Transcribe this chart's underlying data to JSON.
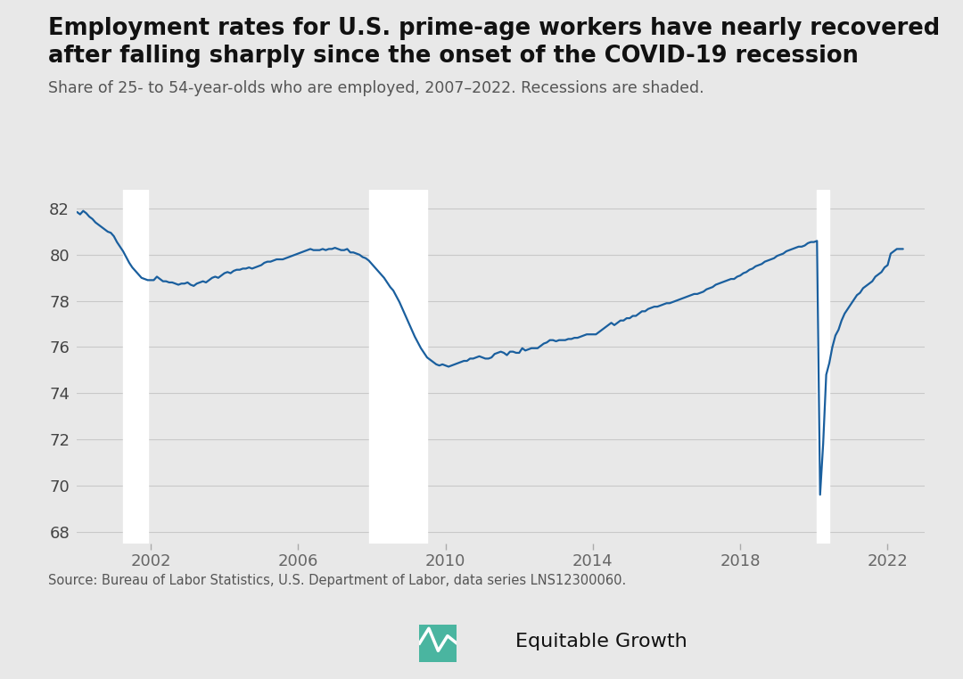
{
  "title_line1": "Employment rates for U.S. prime-age workers have nearly recovered",
  "title_line2": "after falling sharply since the onset of the COVID-19 recession",
  "subtitle": "Share of 25- to 54-year-olds who are employed, 2007–2022. Recessions are shaded.",
  "source": "Source: Bureau of Labor Statistics, U.S. Department of Labor, data series LNS12300060.",
  "line_color": "#1a5f9e",
  "line_width": 1.6,
  "background_color": "#e8e8e8",
  "plot_background": "#e8e8e8",
  "recession_color": "#ffffff",
  "recession_alpha": 1.0,
  "ylim": [
    67.5,
    82.8
  ],
  "yticks": [
    68,
    70,
    72,
    74,
    76,
    78,
    80,
    82
  ],
  "xlim": [
    2000.0,
    2023.0
  ],
  "xtick_positions": [
    2002,
    2006,
    2010,
    2014,
    2018,
    2022
  ],
  "xtick_labels": [
    "2002",
    "2006",
    "2010",
    "2014",
    "2018",
    "2022"
  ],
  "recession1_start": 2001.25,
  "recession1_end": 2001.92,
  "recession2_start": 2007.917,
  "recession2_end": 2009.5,
  "recession3_start": 2020.083,
  "recession3_end": 2020.416,
  "data": [
    [
      2000.0,
      81.85
    ],
    [
      2000.083,
      81.75
    ],
    [
      2000.167,
      81.9
    ],
    [
      2000.25,
      81.8
    ],
    [
      2000.333,
      81.65
    ],
    [
      2000.417,
      81.55
    ],
    [
      2000.5,
      81.4
    ],
    [
      2000.583,
      81.3
    ],
    [
      2000.667,
      81.2
    ],
    [
      2000.75,
      81.1
    ],
    [
      2000.833,
      81.0
    ],
    [
      2000.917,
      80.95
    ],
    [
      2001.0,
      80.8
    ],
    [
      2001.083,
      80.55
    ],
    [
      2001.167,
      80.35
    ],
    [
      2001.25,
      80.15
    ],
    [
      2001.333,
      79.9
    ],
    [
      2001.417,
      79.65
    ],
    [
      2001.5,
      79.45
    ],
    [
      2001.583,
      79.3
    ],
    [
      2001.667,
      79.15
    ],
    [
      2001.75,
      79.0
    ],
    [
      2001.833,
      78.95
    ],
    [
      2001.917,
      78.9
    ],
    [
      2002.0,
      78.9
    ],
    [
      2002.083,
      78.9
    ],
    [
      2002.167,
      79.05
    ],
    [
      2002.25,
      78.95
    ],
    [
      2002.333,
      78.85
    ],
    [
      2002.417,
      78.85
    ],
    [
      2002.5,
      78.8
    ],
    [
      2002.583,
      78.8
    ],
    [
      2002.667,
      78.75
    ],
    [
      2002.75,
      78.7
    ],
    [
      2002.833,
      78.75
    ],
    [
      2002.917,
      78.75
    ],
    [
      2003.0,
      78.8
    ],
    [
      2003.083,
      78.7
    ],
    [
      2003.167,
      78.65
    ],
    [
      2003.25,
      78.75
    ],
    [
      2003.333,
      78.8
    ],
    [
      2003.417,
      78.85
    ],
    [
      2003.5,
      78.8
    ],
    [
      2003.583,
      78.9
    ],
    [
      2003.667,
      79.0
    ],
    [
      2003.75,
      79.05
    ],
    [
      2003.833,
      79.0
    ],
    [
      2003.917,
      79.1
    ],
    [
      2004.0,
      79.2
    ],
    [
      2004.083,
      79.25
    ],
    [
      2004.167,
      79.2
    ],
    [
      2004.25,
      79.3
    ],
    [
      2004.333,
      79.35
    ],
    [
      2004.417,
      79.35
    ],
    [
      2004.5,
      79.4
    ],
    [
      2004.583,
      79.4
    ],
    [
      2004.667,
      79.45
    ],
    [
      2004.75,
      79.4
    ],
    [
      2004.833,
      79.45
    ],
    [
      2004.917,
      79.5
    ],
    [
      2005.0,
      79.55
    ],
    [
      2005.083,
      79.65
    ],
    [
      2005.167,
      79.7
    ],
    [
      2005.25,
      79.7
    ],
    [
      2005.333,
      79.75
    ],
    [
      2005.417,
      79.8
    ],
    [
      2005.5,
      79.8
    ],
    [
      2005.583,
      79.8
    ],
    [
      2005.667,
      79.85
    ],
    [
      2005.75,
      79.9
    ],
    [
      2005.833,
      79.95
    ],
    [
      2005.917,
      80.0
    ],
    [
      2006.0,
      80.05
    ],
    [
      2006.083,
      80.1
    ],
    [
      2006.167,
      80.15
    ],
    [
      2006.25,
      80.2
    ],
    [
      2006.333,
      80.25
    ],
    [
      2006.417,
      80.2
    ],
    [
      2006.5,
      80.2
    ],
    [
      2006.583,
      80.2
    ],
    [
      2006.667,
      80.25
    ],
    [
      2006.75,
      80.2
    ],
    [
      2006.833,
      80.25
    ],
    [
      2006.917,
      80.25
    ],
    [
      2007.0,
      80.3
    ],
    [
      2007.083,
      80.25
    ],
    [
      2007.167,
      80.2
    ],
    [
      2007.25,
      80.2
    ],
    [
      2007.333,
      80.25
    ],
    [
      2007.417,
      80.1
    ],
    [
      2007.5,
      80.1
    ],
    [
      2007.583,
      80.05
    ],
    [
      2007.667,
      80.0
    ],
    [
      2007.75,
      79.9
    ],
    [
      2007.833,
      79.85
    ],
    [
      2007.917,
      79.75
    ],
    [
      2008.0,
      79.6
    ],
    [
      2008.083,
      79.45
    ],
    [
      2008.167,
      79.3
    ],
    [
      2008.25,
      79.15
    ],
    [
      2008.333,
      79.0
    ],
    [
      2008.417,
      78.8
    ],
    [
      2008.5,
      78.6
    ],
    [
      2008.583,
      78.45
    ],
    [
      2008.667,
      78.2
    ],
    [
      2008.75,
      77.95
    ],
    [
      2008.833,
      77.65
    ],
    [
      2008.917,
      77.35
    ],
    [
      2009.0,
      77.05
    ],
    [
      2009.083,
      76.75
    ],
    [
      2009.167,
      76.45
    ],
    [
      2009.25,
      76.2
    ],
    [
      2009.333,
      75.95
    ],
    [
      2009.417,
      75.75
    ],
    [
      2009.5,
      75.55
    ],
    [
      2009.583,
      75.45
    ],
    [
      2009.667,
      75.35
    ],
    [
      2009.75,
      75.25
    ],
    [
      2009.833,
      75.2
    ],
    [
      2009.917,
      75.25
    ],
    [
      2010.0,
      75.2
    ],
    [
      2010.083,
      75.15
    ],
    [
      2010.167,
      75.2
    ],
    [
      2010.25,
      75.25
    ],
    [
      2010.333,
      75.3
    ],
    [
      2010.417,
      75.35
    ],
    [
      2010.5,
      75.4
    ],
    [
      2010.583,
      75.4
    ],
    [
      2010.667,
      75.5
    ],
    [
      2010.75,
      75.5
    ],
    [
      2010.833,
      75.55
    ],
    [
      2010.917,
      75.6
    ],
    [
      2011.0,
      75.55
    ],
    [
      2011.083,
      75.5
    ],
    [
      2011.167,
      75.5
    ],
    [
      2011.25,
      75.55
    ],
    [
      2011.333,
      75.7
    ],
    [
      2011.417,
      75.75
    ],
    [
      2011.5,
      75.8
    ],
    [
      2011.583,
      75.75
    ],
    [
      2011.667,
      75.65
    ],
    [
      2011.75,
      75.8
    ],
    [
      2011.833,
      75.8
    ],
    [
      2011.917,
      75.75
    ],
    [
      2012.0,
      75.75
    ],
    [
      2012.083,
      75.95
    ],
    [
      2012.167,
      75.85
    ],
    [
      2012.25,
      75.9
    ],
    [
      2012.333,
      75.95
    ],
    [
      2012.417,
      75.95
    ],
    [
      2012.5,
      75.95
    ],
    [
      2012.583,
      76.05
    ],
    [
      2012.667,
      76.15
    ],
    [
      2012.75,
      76.2
    ],
    [
      2012.833,
      76.3
    ],
    [
      2012.917,
      76.3
    ],
    [
      2013.0,
      76.25
    ],
    [
      2013.083,
      76.3
    ],
    [
      2013.167,
      76.3
    ],
    [
      2013.25,
      76.3
    ],
    [
      2013.333,
      76.35
    ],
    [
      2013.417,
      76.35
    ],
    [
      2013.5,
      76.4
    ],
    [
      2013.583,
      76.4
    ],
    [
      2013.667,
      76.45
    ],
    [
      2013.75,
      76.5
    ],
    [
      2013.833,
      76.55
    ],
    [
      2013.917,
      76.55
    ],
    [
      2014.0,
      76.55
    ],
    [
      2014.083,
      76.55
    ],
    [
      2014.167,
      76.65
    ],
    [
      2014.25,
      76.75
    ],
    [
      2014.333,
      76.85
    ],
    [
      2014.417,
      76.95
    ],
    [
      2014.5,
      77.05
    ],
    [
      2014.583,
      76.95
    ],
    [
      2014.667,
      77.05
    ],
    [
      2014.75,
      77.15
    ],
    [
      2014.833,
      77.15
    ],
    [
      2014.917,
      77.25
    ],
    [
      2015.0,
      77.25
    ],
    [
      2015.083,
      77.35
    ],
    [
      2015.167,
      77.35
    ],
    [
      2015.25,
      77.45
    ],
    [
      2015.333,
      77.55
    ],
    [
      2015.417,
      77.55
    ],
    [
      2015.5,
      77.65
    ],
    [
      2015.583,
      77.7
    ],
    [
      2015.667,
      77.75
    ],
    [
      2015.75,
      77.75
    ],
    [
      2015.833,
      77.8
    ],
    [
      2015.917,
      77.85
    ],
    [
      2016.0,
      77.9
    ],
    [
      2016.083,
      77.9
    ],
    [
      2016.167,
      77.95
    ],
    [
      2016.25,
      78.0
    ],
    [
      2016.333,
      78.05
    ],
    [
      2016.417,
      78.1
    ],
    [
      2016.5,
      78.15
    ],
    [
      2016.583,
      78.2
    ],
    [
      2016.667,
      78.25
    ],
    [
      2016.75,
      78.3
    ],
    [
      2016.833,
      78.3
    ],
    [
      2016.917,
      78.35
    ],
    [
      2017.0,
      78.4
    ],
    [
      2017.083,
      78.5
    ],
    [
      2017.167,
      78.55
    ],
    [
      2017.25,
      78.6
    ],
    [
      2017.333,
      78.7
    ],
    [
      2017.417,
      78.75
    ],
    [
      2017.5,
      78.8
    ],
    [
      2017.583,
      78.85
    ],
    [
      2017.667,
      78.9
    ],
    [
      2017.75,
      78.95
    ],
    [
      2017.833,
      78.95
    ],
    [
      2017.917,
      79.05
    ],
    [
      2018.0,
      79.1
    ],
    [
      2018.083,
      79.2
    ],
    [
      2018.167,
      79.25
    ],
    [
      2018.25,
      79.35
    ],
    [
      2018.333,
      79.4
    ],
    [
      2018.417,
      79.5
    ],
    [
      2018.5,
      79.55
    ],
    [
      2018.583,
      79.6
    ],
    [
      2018.667,
      79.7
    ],
    [
      2018.75,
      79.75
    ],
    [
      2018.833,
      79.8
    ],
    [
      2018.917,
      79.85
    ],
    [
      2019.0,
      79.95
    ],
    [
      2019.083,
      80.0
    ],
    [
      2019.167,
      80.05
    ],
    [
      2019.25,
      80.15
    ],
    [
      2019.333,
      80.2
    ],
    [
      2019.417,
      80.25
    ],
    [
      2019.5,
      80.3
    ],
    [
      2019.583,
      80.35
    ],
    [
      2019.667,
      80.35
    ],
    [
      2019.75,
      80.4
    ],
    [
      2019.833,
      80.5
    ],
    [
      2019.917,
      80.55
    ],
    [
      2020.0,
      80.55
    ],
    [
      2020.083,
      80.6
    ],
    [
      2020.167,
      69.6
    ],
    [
      2020.25,
      71.8
    ],
    [
      2020.333,
      74.8
    ],
    [
      2020.416,
      75.3
    ],
    [
      2020.5,
      76.0
    ],
    [
      2020.583,
      76.5
    ],
    [
      2020.667,
      76.75
    ],
    [
      2020.75,
      77.15
    ],
    [
      2020.833,
      77.45
    ],
    [
      2020.917,
      77.65
    ],
    [
      2021.0,
      77.85
    ],
    [
      2021.083,
      78.05
    ],
    [
      2021.167,
      78.25
    ],
    [
      2021.25,
      78.35
    ],
    [
      2021.333,
      78.55
    ],
    [
      2021.417,
      78.65
    ],
    [
      2021.5,
      78.75
    ],
    [
      2021.583,
      78.85
    ],
    [
      2021.667,
      79.05
    ],
    [
      2021.75,
      79.15
    ],
    [
      2021.833,
      79.25
    ],
    [
      2021.917,
      79.45
    ],
    [
      2022.0,
      79.55
    ],
    [
      2022.083,
      80.05
    ],
    [
      2022.167,
      80.15
    ],
    [
      2022.25,
      80.25
    ],
    [
      2022.333,
      80.25
    ],
    [
      2022.417,
      80.25
    ]
  ]
}
